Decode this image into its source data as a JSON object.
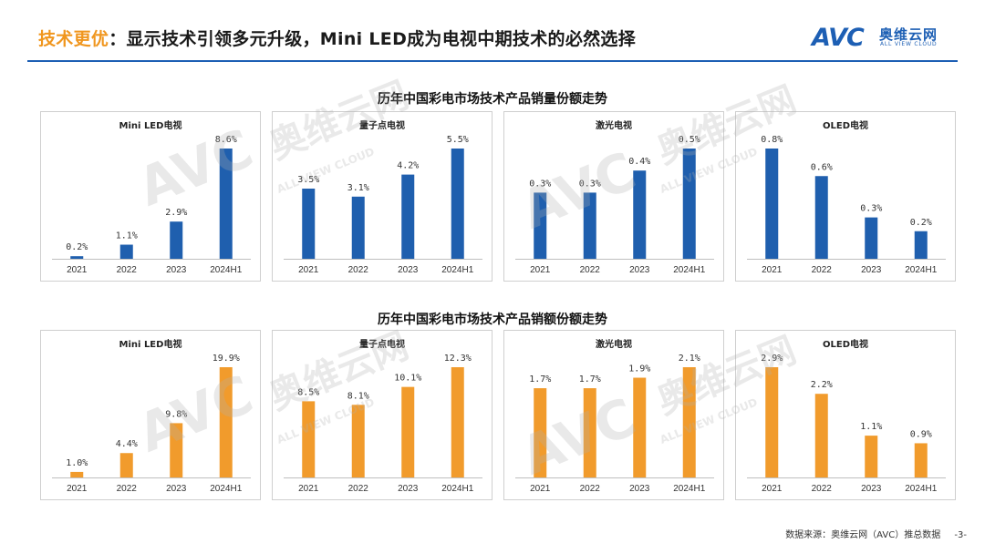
{
  "header": {
    "title_highlight": "技术更优",
    "title_rest": "：显示技术引领多元升级，Mini LED成为电视中期技术的必然选择",
    "logo_text": "AVC",
    "logo_cn": "奥维云网",
    "logo_en": "ALL VIEW CLOUD"
  },
  "watermark": {
    "cn": "奥维云网",
    "en": "ALL VIEW CLOUD",
    "mark": "AVC"
  },
  "colors": {
    "volume": "#1f5fae",
    "value": "#f19b2c",
    "accent": "#1d5fb4"
  },
  "footer": {
    "source": "数据来源：奥维云网（AVC）推总数据",
    "page": "-3-"
  },
  "sections": [
    {
      "title": "历年中国彩电市场技术产品销量份额走势"
    },
    {
      "title": "历年中国彩电市场技术产品销额份额走势"
    }
  ],
  "chart_data": [
    {
      "type": "bar",
      "section": "volume",
      "title": "Mini LED电视",
      "categories": [
        "2021",
        "2022",
        "2023",
        "2024H1"
      ],
      "values": [
        0.2,
        1.1,
        2.9,
        8.6
      ],
      "labels": [
        "0.2%",
        "1.1%",
        "2.9%",
        "8.6%"
      ],
      "color": "#1f5fae"
    },
    {
      "type": "bar",
      "section": "volume",
      "title": "量子点电视",
      "categories": [
        "2021",
        "2022",
        "2023",
        "2024H1"
      ],
      "values": [
        3.5,
        3.1,
        4.2,
        5.5
      ],
      "labels": [
        "3.5%",
        "3.1%",
        "4.2%",
        "5.5%"
      ],
      "color": "#1f5fae"
    },
    {
      "type": "bar",
      "section": "volume",
      "title": "激光电视",
      "categories": [
        "2021",
        "2022",
        "2023",
        "2024H1"
      ],
      "values": [
        0.3,
        0.3,
        0.4,
        0.5
      ],
      "labels": [
        "0.3%",
        "0.3%",
        "0.4%",
        "0.5%"
      ],
      "color": "#1f5fae"
    },
    {
      "type": "bar",
      "section": "volume",
      "title": "OLED电视",
      "categories": [
        "2021",
        "2022",
        "2023",
        "2024H1"
      ],
      "values": [
        0.8,
        0.6,
        0.3,
        0.2
      ],
      "labels": [
        "0.8%",
        "0.6%",
        "0.3%",
        "0.2%"
      ],
      "color": "#1f5fae"
    },
    {
      "type": "bar",
      "section": "value",
      "title": "Mini LED电视",
      "categories": [
        "2021",
        "2022",
        "2023",
        "2024H1"
      ],
      "values": [
        1.0,
        4.4,
        9.8,
        19.9
      ],
      "labels": [
        "1.0%",
        "4.4%",
        "9.8%",
        "19.9%"
      ],
      "color": "#f19b2c"
    },
    {
      "type": "bar",
      "section": "value",
      "title": "量子点电视",
      "categories": [
        "2021",
        "2022",
        "2023",
        "2024H1"
      ],
      "values": [
        8.5,
        8.1,
        10.1,
        12.3
      ],
      "labels": [
        "8.5%",
        "8.1%",
        "10.1%",
        "12.3%"
      ],
      "color": "#f19b2c"
    },
    {
      "type": "bar",
      "section": "value",
      "title": "激光电视",
      "categories": [
        "2021",
        "2022",
        "2023",
        "2024H1"
      ],
      "values": [
        1.7,
        1.7,
        1.9,
        2.1
      ],
      "labels": [
        "1.7%",
        "1.7%",
        "1.9%",
        "2.1%"
      ],
      "color": "#f19b2c"
    },
    {
      "type": "bar",
      "section": "value",
      "title": "OLED电视",
      "categories": [
        "2021",
        "2022",
        "2023",
        "2024H1"
      ],
      "values": [
        2.9,
        2.2,
        1.1,
        0.9
      ],
      "labels": [
        "2.9%",
        "2.2%",
        "1.1%",
        "0.9%"
      ],
      "color": "#f19b2c"
    }
  ]
}
